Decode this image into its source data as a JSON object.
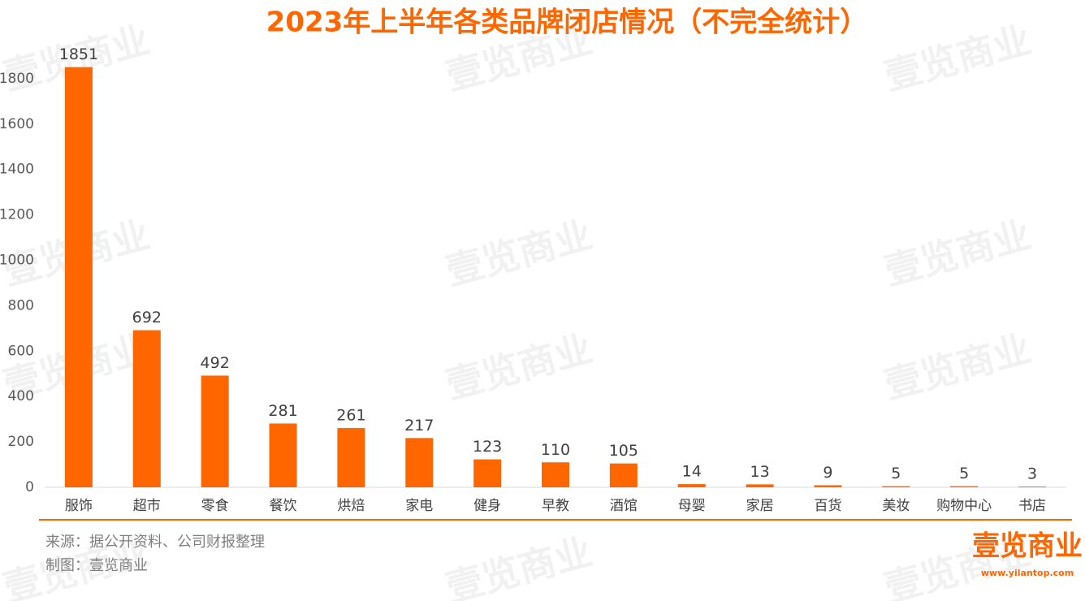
{
  "chart_data": {
    "type": "bar",
    "title": "2023年上半年各类品牌闭店情况（不完全统计）",
    "categories": [
      "服饰",
      "超市",
      "零食",
      "餐饮",
      "烘焙",
      "家电",
      "健身",
      "早教",
      "酒馆",
      "母婴",
      "家居",
      "百货",
      "美妆",
      "购物中心",
      "书店"
    ],
    "values": [
      1851,
      692,
      492,
      281,
      261,
      217,
      123,
      110,
      105,
      14,
      13,
      9,
      5,
      5,
      3
    ],
    "color": "#ff6600",
    "ylim": [
      0,
      2000
    ],
    "yticks": [
      0,
      200,
      400,
      600,
      800,
      1000,
      1200,
      1400,
      1600,
      1800
    ],
    "grid": false
  },
  "footer": {
    "source": "来源：据公开资料、公司财报整理",
    "maker": "制图：壹览商业"
  },
  "logo": {
    "name": "壹览商业",
    "url": "www.yilantop.com"
  },
  "watermark": "壹览商业"
}
